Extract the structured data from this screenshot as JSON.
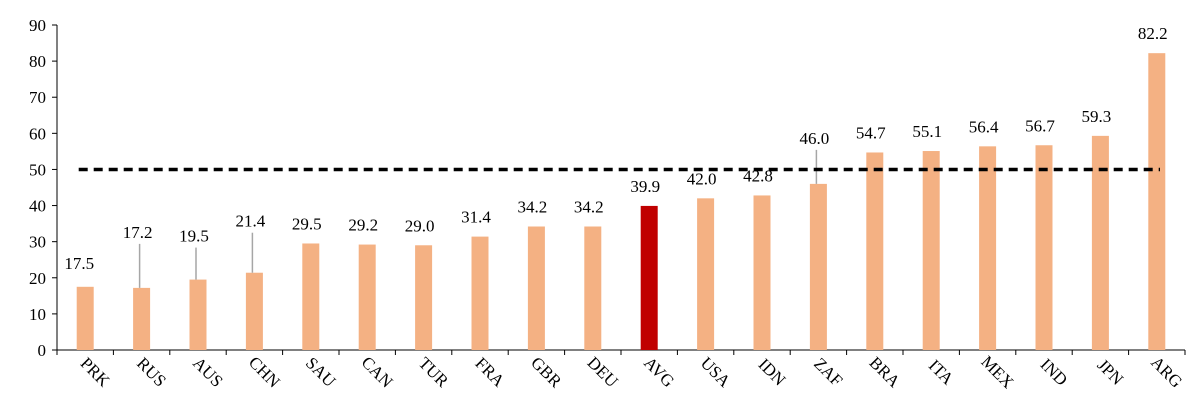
{
  "chart_data": {
    "type": "bar",
    "categories": [
      "PRK",
      "RUS",
      "AUS",
      "CHN",
      "SAU",
      "CAN",
      "TUR",
      "FRA",
      "GBR",
      "DEU",
      "AVG",
      "USA",
      "IDN",
      "ZAF",
      "BRA",
      "ITA",
      "MEX",
      "IND",
      "JPN",
      "ARG"
    ],
    "values": [
      17.5,
      17.2,
      19.5,
      21.4,
      29.5,
      29.2,
      29.0,
      31.4,
      34.2,
      34.2,
      39.9,
      42.0,
      42.8,
      46.0,
      54.7,
      55.1,
      56.4,
      56.7,
      59.3,
      82.2
    ],
    "data_labels": [
      "17.5",
      "17.2",
      "19.5",
      "21.4",
      "29.5",
      "29.2",
      "29.0",
      "31.4",
      "34.2",
      "34.2",
      "39.9",
      "42.0",
      "42.8",
      "46.0",
      "54.7",
      "55.1",
      "56.4",
      "56.7",
      "59.3",
      "82.2"
    ],
    "highlight_category": "AVG",
    "ylim": [
      0,
      90
    ],
    "yticks": [
      0,
      10,
      20,
      30,
      40,
      50,
      60,
      70,
      80,
      90
    ],
    "reference_line": {
      "y": 50,
      "style": "dashed"
    },
    "title": "",
    "xlabel": "",
    "ylabel": "",
    "grid": false,
    "colors": {
      "bar": "#F4B183",
      "highlight": "#C00000",
      "reference": "#000000",
      "axis": "#000000",
      "leader": "#A6A6A6"
    }
  }
}
